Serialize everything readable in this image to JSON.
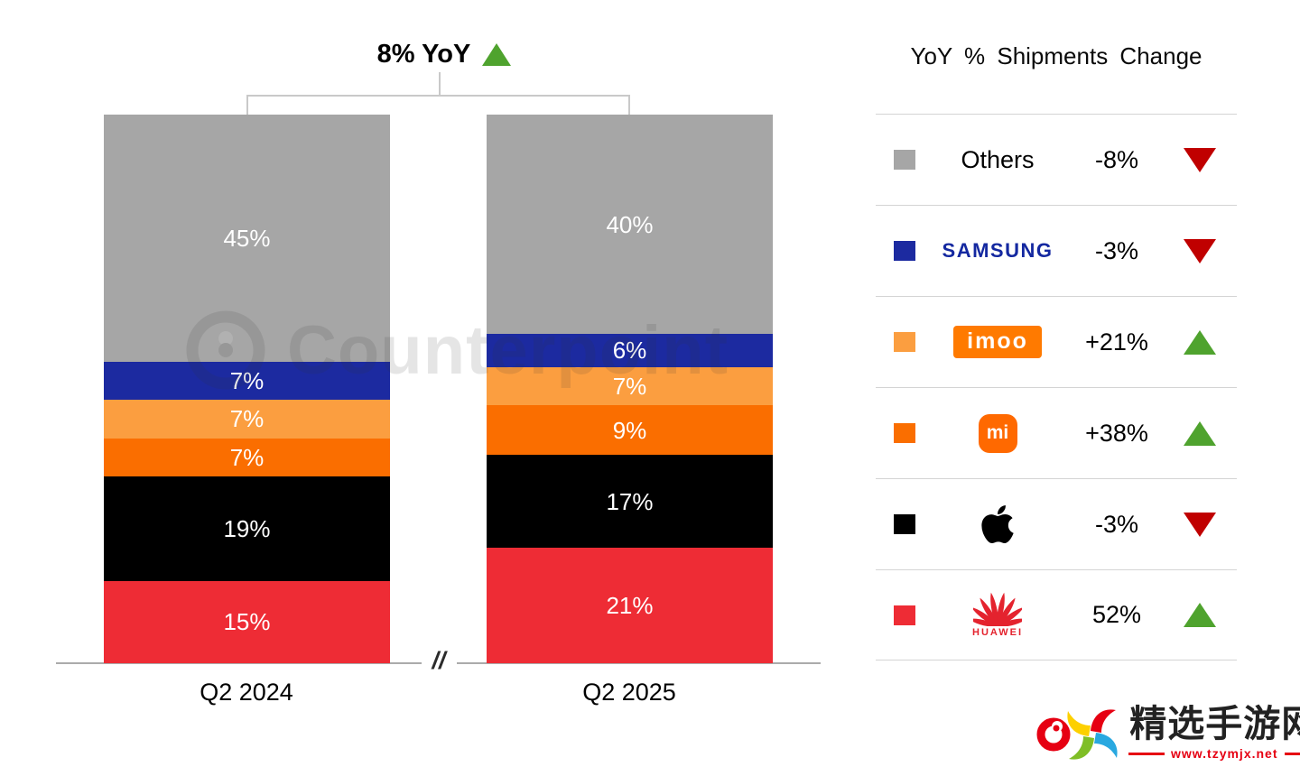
{
  "title": {
    "text": "8% YoY",
    "trend": "up"
  },
  "chart_data": {
    "type": "bar",
    "stacked": true,
    "unit": "%",
    "title": "8% YoY",
    "categories": [
      "Q2 2024",
      "Q2 2025"
    ],
    "series": [
      {
        "name": "Others",
        "color": "#A6A6A6",
        "values": [
          45,
          40
        ]
      },
      {
        "name": "Samsung",
        "color": "#1C2AA0",
        "values": [
          7,
          6
        ]
      },
      {
        "name": "imoo",
        "color": "#FB9E40",
        "values": [
          7,
          7
        ]
      },
      {
        "name": "Xiaomi",
        "color": "#FA6E00",
        "values": [
          7,
          9
        ]
      },
      {
        "name": "Apple",
        "color": "#000000",
        "values": [
          19,
          17
        ]
      },
      {
        "name": "Huawei",
        "color": "#EE2C35",
        "values": [
          15,
          21
        ]
      }
    ],
    "ylim": [
      0,
      100
    ],
    "axis_break": "//",
    "legend_position": "right"
  },
  "legend": {
    "title": "YoY % Shipments Change",
    "rows": [
      {
        "name": "Others",
        "label": "Others",
        "change": "-8%",
        "trend": "down",
        "color": "#A6A6A6"
      },
      {
        "name": "Samsung",
        "label": "SAMSUNG",
        "change": "-3%",
        "trend": "down",
        "color": "#1C2AA0"
      },
      {
        "name": "imoo",
        "label": "imoo",
        "change": "+21%",
        "trend": "up",
        "color": "#FB9E40"
      },
      {
        "name": "Xiaomi",
        "label": "mi",
        "change": "+38%",
        "trend": "up",
        "color": "#FA6E00"
      },
      {
        "name": "Apple",
        "label": "",
        "change": "-3%",
        "trend": "down",
        "color": "#000000"
      },
      {
        "name": "Huawei",
        "label": "HUAWEI",
        "change": "52%",
        "trend": "up",
        "color": "#EE2C35"
      }
    ]
  },
  "watermark": {
    "text": "Counterpoint"
  },
  "footer": {
    "site_name": "精选手游网",
    "site_url": "www.tzymjx.net"
  }
}
